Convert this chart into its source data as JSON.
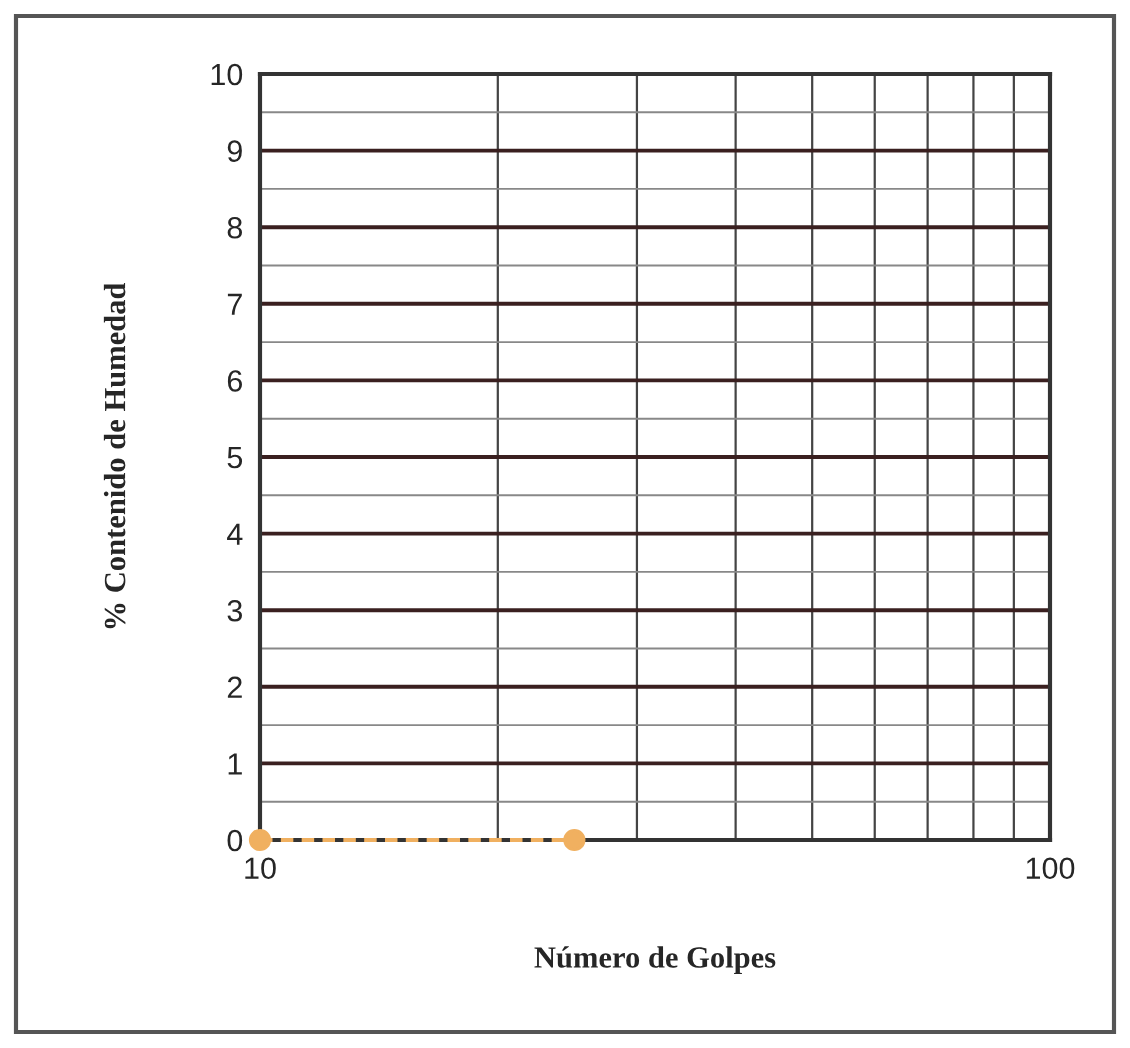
{
  "chart_data": {
    "type": "line",
    "xlabel": "Número de Golpes",
    "ylabel": "% Contenido de Humedad",
    "log": "x",
    "xlim": [
      10,
      100
    ],
    "xticks": [
      10,
      100
    ],
    "ylim": [
      0,
      10
    ],
    "yticks": [
      0,
      1,
      2,
      3,
      4,
      5,
      6,
      7,
      8,
      9,
      10
    ],
    "grid": true,
    "line_style": "dashed",
    "series": [
      {
        "x": [
          10,
          25
        ],
        "values": [
          0,
          0
        ],
        "color": "#f0b060",
        "marker": "circle"
      }
    ]
  }
}
